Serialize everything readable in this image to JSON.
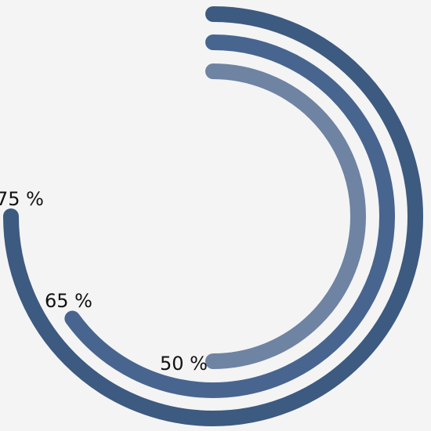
{
  "chart_data": {
    "type": "radial-bar",
    "series": [
      {
        "label": "75 %",
        "value": 75,
        "color": "#3d5a80"
      },
      {
        "label": "65 %",
        "value": 65,
        "color": "#48658f"
      },
      {
        "label": "50 %",
        "value": 50,
        "color": "#6f83a2"
      }
    ],
    "max": 100,
    "start_angle": "top",
    "direction": "clockwise"
  }
}
